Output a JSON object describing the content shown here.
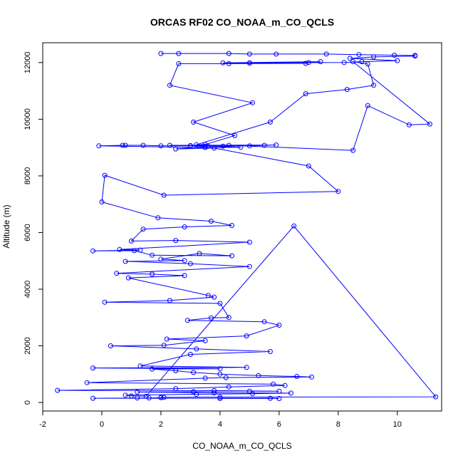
{
  "chart_data": {
    "type": "line",
    "title": "ORCAS RF02 CO_NOAA_m_CO_QCLS",
    "xlabel": "CO_NOAA_m_CO_QCLS",
    "ylabel": "Altitude (m)",
    "xlim": [
      -2,
      11.5
    ],
    "ylim": [
      -300,
      12700
    ],
    "xticks": [
      -2,
      0,
      2,
      4,
      6,
      8,
      10
    ],
    "yticks": [
      0,
      2000,
      4000,
      6000,
      8000,
      10000,
      12000
    ],
    "grid": false,
    "legend": "none",
    "series_color": "#0000ff",
    "marker": "open-circle",
    "series": [
      {
        "x": [
          2.0,
          2.6,
          4.3,
          5.0,
          5.9,
          7.6,
          8.7,
          9.9,
          10.6,
          10.6,
          9.2,
          8.4,
          10.0,
          8.8,
          8.2,
          5.0,
          5.0,
          4.1,
          7.4,
          7.0,
          6.9,
          4.3,
          2.6,
          2.3,
          5.1,
          3.1,
          4.5,
          3.5,
          3.2,
          5.7,
          6.9,
          8.3,
          9.2,
          9.0,
          8.5,
          11.1,
          10.4,
          9.0,
          8.5,
          4.3,
          3.0,
          2.3,
          5.9,
          5.5,
          5.0,
          4.1,
          3.5,
          3.0,
          2.0,
          1.4,
          0.8,
          0.7,
          -0.1,
          3.5,
          4.7,
          3.6,
          2.5,
          3.8,
          7.0,
          8.0,
          2.1,
          0.1,
          0.0,
          1.9,
          3.7,
          4.4,
          2.8,
          1.4,
          1.0,
          2.5,
          5.0,
          0.6,
          1.3,
          -0.3,
          1.1,
          1.7,
          4.4,
          3.3,
          2.0,
          2.8,
          0.8,
          3.0,
          5.0,
          0.5,
          1.7,
          2.8,
          0.9,
          3.6,
          3.8,
          2.3,
          0.1,
          4.0,
          4.3,
          3.7,
          2.9,
          5.5,
          6.0,
          4.9,
          2.2,
          3.5,
          2.1,
          0.3,
          3.2,
          5.7,
          3.0,
          1.3,
          4.9,
          -0.3,
          4.0,
          1.7,
          2.5,
          3.1,
          4.0,
          5.3,
          6.6,
          7.1,
          4.2,
          3.5,
          -0.5,
          5.8,
          6.2,
          4.3,
          2.5,
          -1.5,
          3.8,
          6.0,
          5.0,
          3.1,
          1.2,
          3.8,
          6.4,
          5.1,
          3.2,
          0.8,
          1.0,
          1.5,
          6.5,
          11.3,
          4.0,
          2.1,
          2.0,
          2.0,
          1.6,
          1.2,
          -0.3,
          5.7,
          6.0,
          4.0
        ],
        "y": [
          12320,
          12320,
          12320,
          12300,
          12300,
          12300,
          12280,
          12260,
          12250,
          12230,
          12200,
          12150,
          12070,
          12030,
          12000,
          11990,
          11980,
          11990,
          12030,
          12000,
          11970,
          11960,
          11960,
          11200,
          10580,
          9900,
          9420,
          9110,
          9100,
          9900,
          10900,
          11050,
          11200,
          11950,
          12030,
          9830,
          9800,
          10480,
          8900,
          9080,
          9070,
          9080,
          9090,
          9080,
          9060,
          9050,
          9050,
          9060,
          9060,
          9080,
          9080,
          9080,
          9060,
          9000,
          9010,
          9050,
          8950,
          8980,
          8350,
          7450,
          7320,
          8020,
          7080,
          6520,
          6400,
          6250,
          6200,
          6120,
          5700,
          5720,
          5660,
          5400,
          5380,
          5350,
          5360,
          5200,
          5180,
          5260,
          5060,
          5010,
          4980,
          4900,
          4800,
          4560,
          4530,
          4480,
          4400,
          3780,
          3720,
          3600,
          3540,
          3500,
          3000,
          2990,
          2900,
          2850,
          2730,
          2350,
          2240,
          2180,
          2020,
          2000,
          1890,
          1800,
          1700,
          1290,
          1240,
          1220,
          1190,
          1180,
          1120,
          1060,
          1000,
          950,
          920,
          900,
          880,
          860,
          700,
          650,
          600,
          550,
          490,
          430,
          420,
          400,
          400,
          380,
          370,
          340,
          330,
          310,
          290,
          260,
          230,
          220,
          6230,
          200,
          190,
          180,
          180,
          170,
          160,
          160,
          150,
          150,
          140,
          140
        ]
      }
    ]
  }
}
